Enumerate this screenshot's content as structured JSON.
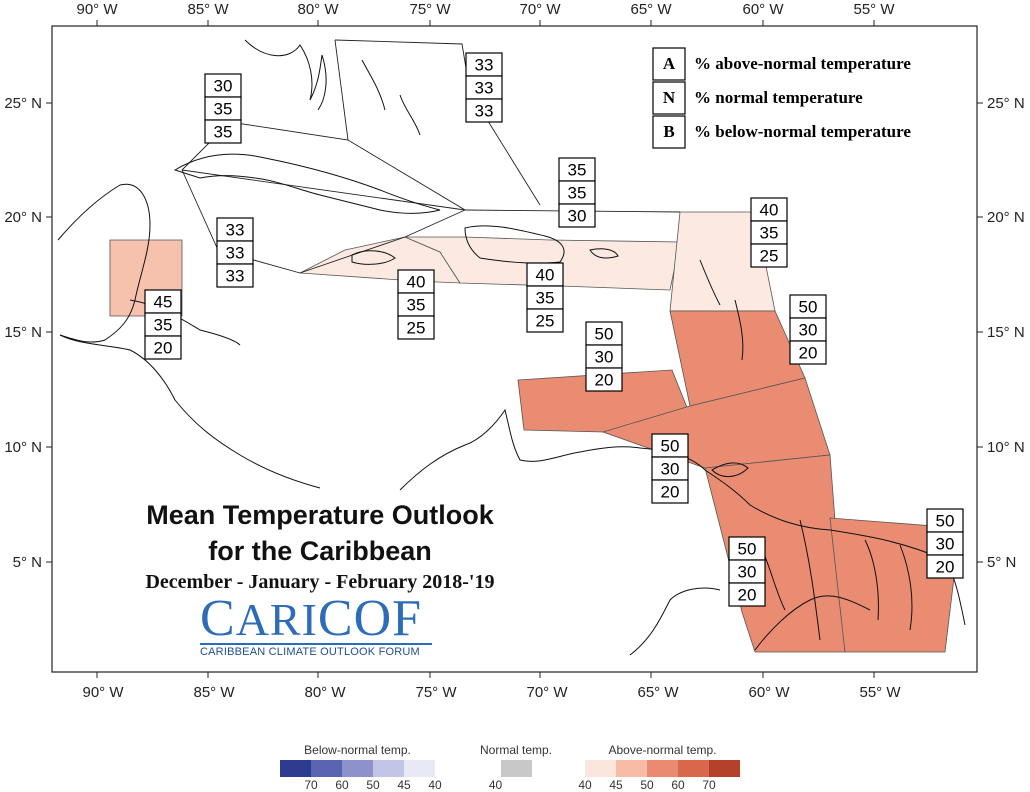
{
  "axes": {
    "x_ticks": [
      "90° W",
      "85° W",
      "80° W",
      "75° W",
      "70° W",
      "65° W",
      "60° W",
      "55° W"
    ],
    "y_ticks": [
      "25° N",
      "20° N",
      "15° N",
      "10° N",
      "5° N"
    ]
  },
  "legend": {
    "items": [
      {
        "letter": "A",
        "text": "% above-normal temperature"
      },
      {
        "letter": "N",
        "text": "% normal temperature"
      },
      {
        "letter": "B",
        "text": "% below-normal temperature"
      }
    ]
  },
  "title": {
    "line1": "Mean Temperature Outlook",
    "line2": "for the Caribbean",
    "subtitle": "December - January - February 2018-'19"
  },
  "logo": {
    "name": "CariCOF",
    "subtitle": "CARIBBEAN CLIMATE OUTLOOK FORUM"
  },
  "regions": [
    {
      "id": "bahamas",
      "A": "33",
      "N": "33",
      "B": "33"
    },
    {
      "id": "cuba-west",
      "A": "30",
      "N": "35",
      "B": "35"
    },
    {
      "id": "cayman-jamaica-west",
      "A": "33",
      "N": "33",
      "B": "33"
    },
    {
      "id": "belize",
      "A": "45",
      "N": "35",
      "B": "20"
    },
    {
      "id": "jamaica",
      "A": "40",
      "N": "35",
      "B": "25"
    },
    {
      "id": "hispaniola",
      "A": "40",
      "N": "35",
      "B": "25"
    },
    {
      "id": "turks-caicos",
      "A": "35",
      "N": "35",
      "B": "30"
    },
    {
      "id": "leeward-islands",
      "A": "40",
      "N": "35",
      "B": "25"
    },
    {
      "id": "windward-islands",
      "A": "50",
      "N": "30",
      "B": "20"
    },
    {
      "id": "abc-islands",
      "A": "50",
      "N": "30",
      "B": "20"
    },
    {
      "id": "trinidad",
      "A": "50",
      "N": "30",
      "B": "20"
    },
    {
      "id": "guyana",
      "A": "50",
      "N": "30",
      "B": "20"
    },
    {
      "id": "suriname-guiana",
      "A": "50",
      "N": "30",
      "B": "20"
    }
  ],
  "colorbar": {
    "below": {
      "title": "Below-normal temp.",
      "labels": [
        "70",
        "60",
        "50",
        "45",
        "40"
      ],
      "colors": [
        "#2f3b8f",
        "#5b64b0",
        "#8e92cc",
        "#c3c5e6",
        "#e8e9f6"
      ]
    },
    "normal": {
      "title": "Normal temp.",
      "labels": [
        "40"
      ],
      "colors": [
        "#c8c8c8"
      ]
    },
    "above": {
      "title": "Above-normal temp.",
      "labels": [
        "40",
        "45",
        "50",
        "60",
        "70"
      ],
      "colors": [
        "#fbe6dd",
        "#f6bca6",
        "#e98b70",
        "#d9674c",
        "#b5402b"
      ]
    }
  },
  "colors": {
    "above_40": "#fbe9e2",
    "above_45": "#f6c2ae",
    "above_50": "#e98c72"
  }
}
